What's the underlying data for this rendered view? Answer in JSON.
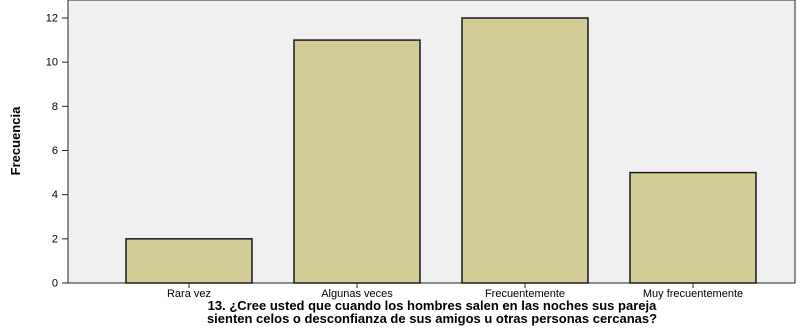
{
  "chart_data": {
    "type": "bar",
    "title": "",
    "categories": [
      "Rara vez",
      "Algunas veces",
      "Frecuentemente",
      "Muy frecuentemente"
    ],
    "values": [
      2,
      11,
      12,
      5
    ],
    "xlabel": "13. ¿Cree usted que cuando los hombres salen en las noches sus pareja sienten celos o desconfianza de sus amigos u otras personas cercanas?",
    "xlabel_lines": [
      "13. ¿Cree usted que cuando los hombres salen en las noches sus pareja",
      "sienten celos o desconfianza de sus amigos u otras personas cercanas?"
    ],
    "ylabel": "Frecuencia",
    "ylim": [
      0,
      12
    ],
    "yticks": [
      0,
      2,
      4,
      6,
      8,
      10,
      12
    ],
    "grid": false,
    "legend": "none",
    "colors": {
      "bar_fill": "#d3cc96",
      "bar_stroke": "#1a1a1a",
      "plot_background": "#f0f0f0",
      "plot_border": "#222222",
      "text": "#000000"
    }
  }
}
